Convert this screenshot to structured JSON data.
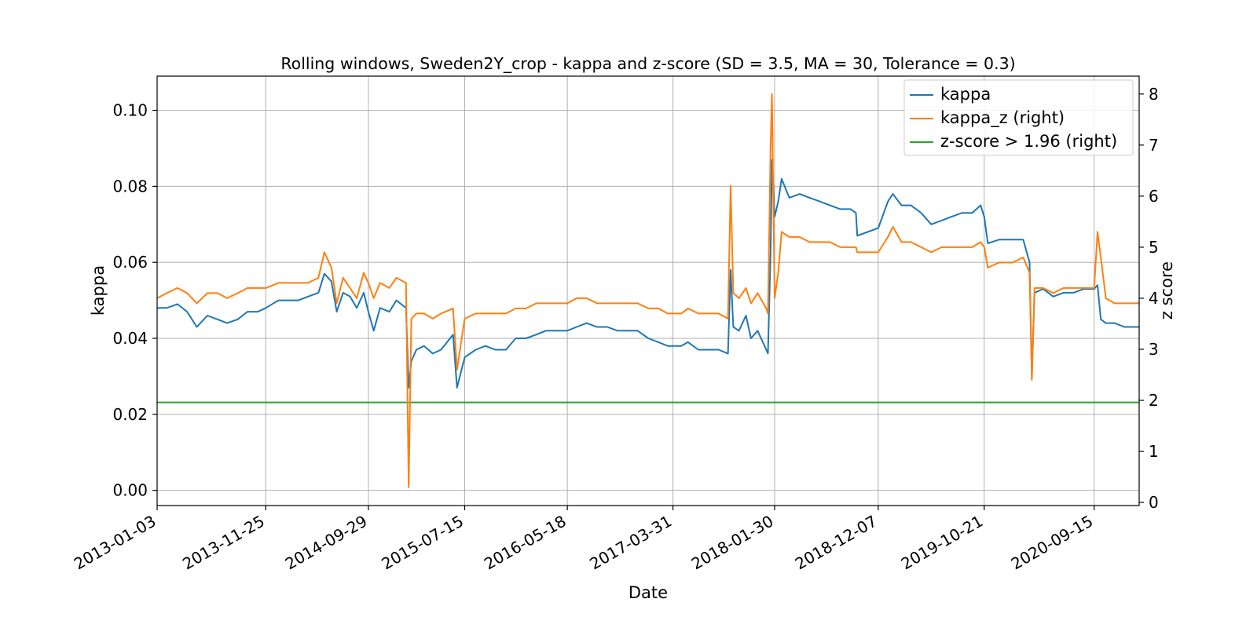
{
  "chart_data": {
    "type": "line",
    "title": "Rolling windows, Sweden2Y_crop - kappa and z-score (SD = 3.5, MA = 30, Tolerance  = 0.3)",
    "xlabel": "Date",
    "ylabel_left": "kappa",
    "ylabel_right": "z score",
    "xlim": [
      "2013-01-03",
      "2021-01-28"
    ],
    "ylim_left": [
      -0.004,
      0.109
    ],
    "ylim_right": [
      -0.06,
      8.35
    ],
    "x_ticks": [
      "2013-01-03",
      "2013-11-25",
      "2014-09-29",
      "2015-07-15",
      "2016-05-18",
      "2017-03-31",
      "2018-01-30",
      "2018-12-07",
      "2019-10-21",
      "2020-09-15"
    ],
    "y_ticks_left": [
      "0.00",
      "0.02",
      "0.04",
      "0.06",
      "0.08",
      "0.10"
    ],
    "y_ticks_right": [
      "0",
      "1",
      "2",
      "3",
      "4",
      "5",
      "6",
      "7",
      "8"
    ],
    "grid": true,
    "legend_position": "top-right",
    "series": [
      {
        "name": "kappa",
        "axis": "left",
        "color": "#1f77b4",
        "points": [
          [
            "2013-01-03",
            0.048
          ],
          [
            "2013-02-01",
            0.048
          ],
          [
            "2013-03-05",
            0.049
          ],
          [
            "2013-04-03",
            0.047
          ],
          [
            "2013-05-02",
            0.043
          ],
          [
            "2013-06-03",
            0.046
          ],
          [
            "2013-07-03",
            0.045
          ],
          [
            "2013-08-01",
            0.044
          ],
          [
            "2013-09-02",
            0.045
          ],
          [
            "2013-10-01",
            0.047
          ],
          [
            "2013-11-01",
            0.047
          ],
          [
            "2013-11-25",
            0.048
          ],
          [
            "2014-01-02",
            0.05
          ],
          [
            "2014-02-03",
            0.05
          ],
          [
            "2014-03-03",
            0.05
          ],
          [
            "2014-04-01",
            0.051
          ],
          [
            "2014-05-02",
            0.052
          ],
          [
            "2014-05-20",
            0.057
          ],
          [
            "2014-06-10",
            0.055
          ],
          [
            "2014-06-26",
            0.047
          ],
          [
            "2014-07-15",
            0.052
          ],
          [
            "2014-08-05",
            0.051
          ],
          [
            "2014-08-25",
            0.048
          ],
          [
            "2014-09-15",
            0.052
          ],
          [
            "2014-09-29",
            0.047
          ],
          [
            "2014-10-15",
            0.042
          ],
          [
            "2014-11-03",
            0.048
          ],
          [
            "2014-12-01",
            0.047
          ],
          [
            "2014-12-22",
            0.05
          ],
          [
            "2015-01-20",
            0.048
          ],
          [
            "2015-01-28",
            0.027
          ],
          [
            "2015-02-05",
            0.034
          ],
          [
            "2015-02-20",
            0.037
          ],
          [
            "2015-03-15",
            0.038
          ],
          [
            "2015-04-10",
            0.036
          ],
          [
            "2015-05-05",
            0.037
          ],
          [
            "2015-06-10",
            0.041
          ],
          [
            "2015-06-22",
            0.027
          ],
          [
            "2015-07-15",
            0.035
          ],
          [
            "2015-08-17",
            0.037
          ],
          [
            "2015-09-15",
            0.038
          ],
          [
            "2015-10-15",
            0.037
          ],
          [
            "2015-11-16",
            0.037
          ],
          [
            "2015-12-15",
            0.04
          ],
          [
            "2016-01-15",
            0.04
          ],
          [
            "2016-02-15",
            0.041
          ],
          [
            "2016-03-15",
            0.042
          ],
          [
            "2016-04-15",
            0.042
          ],
          [
            "2016-05-18",
            0.042
          ],
          [
            "2016-06-15",
            0.043
          ],
          [
            "2016-07-15",
            0.044
          ],
          [
            "2016-08-15",
            0.043
          ],
          [
            "2016-09-15",
            0.043
          ],
          [
            "2016-10-15",
            0.042
          ],
          [
            "2016-11-15",
            0.042
          ],
          [
            "2016-12-15",
            0.042
          ],
          [
            "2017-01-16",
            0.04
          ],
          [
            "2017-02-15",
            0.039
          ],
          [
            "2017-03-15",
            0.038
          ],
          [
            "2017-03-31",
            0.038
          ],
          [
            "2017-04-25",
            0.038
          ],
          [
            "2017-05-15",
            0.039
          ],
          [
            "2017-06-15",
            0.037
          ],
          [
            "2017-07-15",
            0.037
          ],
          [
            "2017-08-15",
            0.037
          ],
          [
            "2017-09-12",
            0.036
          ],
          [
            "2017-09-20",
            0.058
          ],
          [
            "2017-09-28",
            0.043
          ],
          [
            "2017-10-15",
            0.042
          ],
          [
            "2017-11-05",
            0.046
          ],
          [
            "2017-11-20",
            0.04
          ],
          [
            "2017-12-10",
            0.042
          ],
          [
            "2018-01-05",
            0.037
          ],
          [
            "2018-01-10",
            0.036
          ],
          [
            "2018-01-18",
            0.063
          ],
          [
            "2018-01-22",
            0.087
          ],
          [
            "2018-01-30",
            0.072
          ],
          [
            "2018-02-10",
            0.076
          ],
          [
            "2018-02-20",
            0.082
          ],
          [
            "2018-03-15",
            0.077
          ],
          [
            "2018-04-15",
            0.078
          ],
          [
            "2018-05-15",
            0.077
          ],
          [
            "2018-06-15",
            0.076
          ],
          [
            "2018-07-15",
            0.075
          ],
          [
            "2018-08-15",
            0.074
          ],
          [
            "2018-09-15",
            0.074
          ],
          [
            "2018-10-01",
            0.073
          ],
          [
            "2018-10-05",
            0.067
          ],
          [
            "2018-11-05",
            0.068
          ],
          [
            "2018-12-07",
            0.069
          ],
          [
            "2019-01-05",
            0.076
          ],
          [
            "2019-01-20",
            0.078
          ],
          [
            "2019-02-15",
            0.075
          ],
          [
            "2019-03-15",
            0.075
          ],
          [
            "2019-04-15",
            0.073
          ],
          [
            "2019-05-15",
            0.07
          ],
          [
            "2019-06-15",
            0.071
          ],
          [
            "2019-07-15",
            0.072
          ],
          [
            "2019-08-15",
            0.073
          ],
          [
            "2019-09-15",
            0.073
          ],
          [
            "2019-10-10",
            0.075
          ],
          [
            "2019-10-21",
            0.072
          ],
          [
            "2019-11-01",
            0.065
          ],
          [
            "2019-12-05",
            0.066
          ],
          [
            "2020-01-15",
            0.066
          ],
          [
            "2020-02-15",
            0.066
          ],
          [
            "2020-03-05",
            0.06
          ],
          [
            "2020-03-12",
            0.03
          ],
          [
            "2020-03-20",
            0.052
          ],
          [
            "2020-04-15",
            0.053
          ],
          [
            "2020-05-15",
            0.051
          ],
          [
            "2020-06-15",
            0.052
          ],
          [
            "2020-07-15",
            0.052
          ],
          [
            "2020-08-15",
            0.053
          ],
          [
            "2020-09-15",
            0.053
          ],
          [
            "2020-09-25",
            0.054
          ],
          [
            "2020-10-05",
            0.045
          ],
          [
            "2020-10-20",
            0.044
          ],
          [
            "2020-11-15",
            0.044
          ],
          [
            "2020-12-15",
            0.043
          ],
          [
            "2021-01-15",
            0.043
          ],
          [
            "2021-01-28",
            0.043
          ]
        ]
      },
      {
        "name": "kappa_z (right)",
        "axis": "right",
        "color": "#ff7f0e",
        "points": [
          [
            "2013-01-03",
            4.0
          ],
          [
            "2013-02-01",
            4.1
          ],
          [
            "2013-03-05",
            4.2
          ],
          [
            "2013-04-03",
            4.1
          ],
          [
            "2013-05-02",
            3.9
          ],
          [
            "2013-06-03",
            4.1
          ],
          [
            "2013-07-03",
            4.1
          ],
          [
            "2013-08-01",
            4.0
          ],
          [
            "2013-09-02",
            4.1
          ],
          [
            "2013-10-01",
            4.2
          ],
          [
            "2013-11-01",
            4.2
          ],
          [
            "2013-11-25",
            4.2
          ],
          [
            "2014-01-02",
            4.3
          ],
          [
            "2014-02-03",
            4.3
          ],
          [
            "2014-03-03",
            4.3
          ],
          [
            "2014-04-01",
            4.3
          ],
          [
            "2014-05-02",
            4.4
          ],
          [
            "2014-05-20",
            4.9
          ],
          [
            "2014-06-10",
            4.6
          ],
          [
            "2014-06-26",
            3.9
          ],
          [
            "2014-07-15",
            4.4
          ],
          [
            "2014-08-05",
            4.2
          ],
          [
            "2014-08-25",
            4.0
          ],
          [
            "2014-09-15",
            4.5
          ],
          [
            "2014-09-29",
            4.3
          ],
          [
            "2014-10-15",
            4.0
          ],
          [
            "2014-11-03",
            4.3
          ],
          [
            "2014-12-01",
            4.2
          ],
          [
            "2014-12-22",
            4.4
          ],
          [
            "2015-01-20",
            4.3
          ],
          [
            "2015-01-28",
            0.3
          ],
          [
            "2015-02-05",
            3.6
          ],
          [
            "2015-02-20",
            3.7
          ],
          [
            "2015-03-15",
            3.7
          ],
          [
            "2015-04-10",
            3.6
          ],
          [
            "2015-05-05",
            3.7
          ],
          [
            "2015-06-10",
            3.8
          ],
          [
            "2015-06-22",
            2.6
          ],
          [
            "2015-07-15",
            3.6
          ],
          [
            "2015-08-17",
            3.7
          ],
          [
            "2015-09-15",
            3.7
          ],
          [
            "2015-10-15",
            3.7
          ],
          [
            "2015-11-16",
            3.7
          ],
          [
            "2015-12-15",
            3.8
          ],
          [
            "2016-01-15",
            3.8
          ],
          [
            "2016-02-15",
            3.9
          ],
          [
            "2016-03-15",
            3.9
          ],
          [
            "2016-04-15",
            3.9
          ],
          [
            "2016-05-18",
            3.9
          ],
          [
            "2016-06-15",
            4.0
          ],
          [
            "2016-07-15",
            4.0
          ],
          [
            "2016-08-15",
            3.9
          ],
          [
            "2016-09-15",
            3.9
          ],
          [
            "2016-10-15",
            3.9
          ],
          [
            "2016-11-15",
            3.9
          ],
          [
            "2016-12-15",
            3.9
          ],
          [
            "2017-01-16",
            3.8
          ],
          [
            "2017-02-15",
            3.8
          ],
          [
            "2017-03-15",
            3.7
          ],
          [
            "2017-03-31",
            3.7
          ],
          [
            "2017-04-25",
            3.7
          ],
          [
            "2017-05-15",
            3.8
          ],
          [
            "2017-06-15",
            3.7
          ],
          [
            "2017-07-15",
            3.7
          ],
          [
            "2017-08-15",
            3.7
          ],
          [
            "2017-09-12",
            3.6
          ],
          [
            "2017-09-20",
            6.2
          ],
          [
            "2017-09-28",
            4.1
          ],
          [
            "2017-10-15",
            4.0
          ],
          [
            "2017-11-05",
            4.2
          ],
          [
            "2017-11-20",
            3.9
          ],
          [
            "2017-12-10",
            4.1
          ],
          [
            "2018-01-05",
            3.8
          ],
          [
            "2018-01-10",
            3.7
          ],
          [
            "2018-01-18",
            7.0
          ],
          [
            "2018-01-22",
            8.0
          ],
          [
            "2018-01-30",
            4.0
          ],
          [
            "2018-02-10",
            4.5
          ],
          [
            "2018-02-20",
            5.3
          ],
          [
            "2018-03-15",
            5.2
          ],
          [
            "2018-04-15",
            5.2
          ],
          [
            "2018-05-15",
            5.1
          ],
          [
            "2018-06-15",
            5.1
          ],
          [
            "2018-07-15",
            5.1
          ],
          [
            "2018-08-15",
            5.0
          ],
          [
            "2018-09-15",
            5.0
          ],
          [
            "2018-10-01",
            5.0
          ],
          [
            "2018-10-05",
            4.9
          ],
          [
            "2018-11-05",
            4.9
          ],
          [
            "2018-12-07",
            4.9
          ],
          [
            "2019-01-05",
            5.2
          ],
          [
            "2019-01-20",
            5.4
          ],
          [
            "2019-02-15",
            5.1
          ],
          [
            "2019-03-15",
            5.1
          ],
          [
            "2019-04-15",
            5.0
          ],
          [
            "2019-05-15",
            4.9
          ],
          [
            "2019-06-15",
            5.0
          ],
          [
            "2019-07-15",
            5.0
          ],
          [
            "2019-08-15",
            5.0
          ],
          [
            "2019-09-15",
            5.0
          ],
          [
            "2019-10-10",
            5.1
          ],
          [
            "2019-10-21",
            5.0
          ],
          [
            "2019-11-01",
            4.6
          ],
          [
            "2019-12-05",
            4.7
          ],
          [
            "2020-01-15",
            4.7
          ],
          [
            "2020-02-15",
            4.8
          ],
          [
            "2020-03-05",
            4.5
          ],
          [
            "2020-03-12",
            2.4
          ],
          [
            "2020-03-20",
            4.2
          ],
          [
            "2020-04-15",
            4.2
          ],
          [
            "2020-05-15",
            4.1
          ],
          [
            "2020-06-15",
            4.2
          ],
          [
            "2020-07-15",
            4.2
          ],
          [
            "2020-08-15",
            4.2
          ],
          [
            "2020-09-15",
            4.2
          ],
          [
            "2020-09-25",
            5.3
          ],
          [
            "2020-10-05",
            4.8
          ],
          [
            "2020-10-20",
            4.0
          ],
          [
            "2020-11-15",
            3.9
          ],
          [
            "2020-12-15",
            3.9
          ],
          [
            "2021-01-15",
            3.9
          ],
          [
            "2021-01-28",
            3.9
          ]
        ]
      },
      {
        "name": "z-score > 1.96 (right)",
        "axis": "right",
        "color": "#2ca02c",
        "points": [
          [
            "2013-01-03",
            1.96
          ],
          [
            "2021-01-28",
            1.96
          ]
        ]
      }
    ]
  }
}
